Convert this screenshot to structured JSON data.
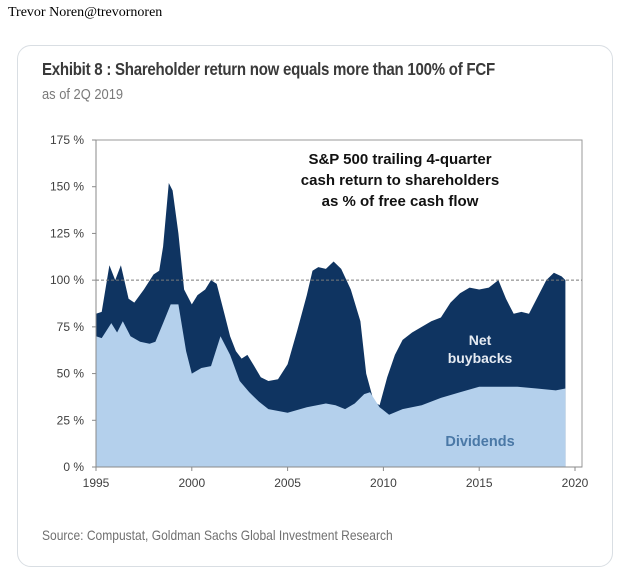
{
  "post": {
    "author": "Trevor Noren@trevornoren"
  },
  "card": {
    "title": "Exhibit 8 : Shareholder return now equals more than 100% of FCF",
    "subtitle": "as of 2Q 2019",
    "source": "Source: Compustat, Goldman Sachs Global Investment Research"
  },
  "chart_data": {
    "type": "area",
    "title": "Exhibit 8 : Shareholder return now equals more than 100% of FCF",
    "subtitle": "as of 2Q 2019",
    "annotation": [
      "S&P 500 trailing 4-quarter",
      "cash return to shareholders",
      "as % of free cash flow"
    ],
    "xlabel": "",
    "ylabel": "",
    "xlim": [
      1995,
      2020
    ],
    "ylim": [
      0,
      175
    ],
    "x_ticks": [
      1995,
      2000,
      2005,
      2010,
      2015,
      2020
    ],
    "x_tick_labels": [
      "1995",
      "2000",
      "2005",
      "2010",
      "2015",
      "2020"
    ],
    "y_ticks": [
      0,
      25,
      50,
      75,
      100,
      125,
      150,
      175
    ],
    "y_tick_labels": [
      "0 %",
      "25 %",
      "50 %",
      "75 %",
      "100 %",
      "125 %",
      "150 %",
      "175 %"
    ],
    "reference_line": {
      "y": 100,
      "style": "dashed"
    },
    "grid": false,
    "stacked": true,
    "series": [
      {
        "name": "Dividends",
        "color": "#b4d0ec",
        "label_color": "#4a78a6",
        "x": [
          1995.0,
          1995.3,
          1995.8,
          1996.1,
          1996.4,
          1996.8,
          1997.3,
          1997.8,
          1998.1,
          1998.5,
          1998.9,
          1999.3,
          1999.7,
          2000.0,
          2000.5,
          2001.0,
          2001.5,
          2002.0,
          2002.5,
          2003.0,
          2003.5,
          2004.0,
          2005.0,
          2006.0,
          2007.0,
          2007.5,
          2008.0,
          2008.5,
          2009.0,
          2009.3,
          2009.8,
          2010.3,
          2011.0,
          2012.0,
          2013.0,
          2014.0,
          2015.0,
          2016.0,
          2017.0,
          2018.0,
          2019.0,
          2019.5
        ],
        "values": [
          70,
          69,
          77,
          72,
          78,
          70,
          67,
          66,
          67,
          77,
          87,
          87,
          62,
          50,
          53,
          54,
          70,
          60,
          46,
          40,
          35,
          31,
          29,
          32,
          34,
          33,
          31,
          34,
          39,
          40,
          32,
          28,
          31,
          33,
          37,
          40,
          43,
          43,
          43,
          42,
          41,
          42
        ]
      },
      {
        "name": "Net buybacks",
        "color": "#0f3461",
        "label_color": "#e6ebf2",
        "total_x": [
          1995.0,
          1995.3,
          1995.7,
          1996.0,
          1996.3,
          1996.7,
          1997.0,
          1997.5,
          1998.0,
          1998.3,
          1998.5,
          1998.8,
          1999.0,
          1999.3,
          1999.6,
          2000.0,
          2000.3,
          2000.7,
          2001.0,
          2001.3,
          2001.7,
          2002.0,
          2002.3,
          2002.6,
          2002.9,
          2003.2,
          2003.6,
          2004.0,
          2004.5,
          2005.0,
          2005.5,
          2006.0,
          2006.3,
          2006.6,
          2007.0,
          2007.4,
          2007.8,
          2008.3,
          2008.8,
          2009.1,
          2009.5,
          2009.8,
          2010.2,
          2010.6,
          2011.0,
          2011.5,
          2012.0,
          2012.5,
          2013.0,
          2013.5,
          2014.0,
          2014.5,
          2015.0,
          2015.5,
          2016.0,
          2016.4,
          2016.8,
          2017.2,
          2017.6,
          2018.0,
          2018.5,
          2018.9,
          2019.3,
          2019.5
        ],
        "total_values": [
          82,
          83,
          108,
          100,
          108,
          90,
          88,
          95,
          103,
          105,
          118,
          152,
          148,
          125,
          95,
          87,
          92,
          95,
          100,
          98,
          82,
          70,
          62,
          58,
          60,
          55,
          48,
          46,
          47,
          55,
          73,
          92,
          105,
          107,
          106,
          110,
          106,
          95,
          78,
          50,
          35,
          33,
          48,
          60,
          68,
          72,
          75,
          78,
          80,
          88,
          93,
          96,
          95,
          96,
          100,
          90,
          82,
          83,
          82,
          90,
          100,
          104,
          102,
          100
        ]
      }
    ],
    "series_labels": {
      "net_buybacks": [
        "Net",
        "buybacks"
      ],
      "dividends": "Dividends"
    },
    "legend": "in-plot labels"
  }
}
